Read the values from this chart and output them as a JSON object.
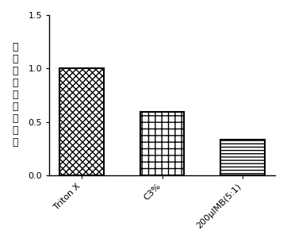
{
  "categories": [
    "Triton X",
    "C3%",
    "200μIMB(5:1)"
  ],
  "values": [
    1.0,
    0.595,
    0.33
  ],
  "hatch_patterns": [
    "xx",
    "**",
    "==="
  ],
  "bar_width": 0.55,
  "bar_facecolor": "white",
  "bar_edgecolor": "black",
  "ylim": [
    0,
    1.5
  ],
  "yticks": [
    0.0,
    0.5,
    1.0,
    1.5
  ],
  "ylabel": "细胞毒性相对百分毒",
  "ylabel_chars": [
    "细",
    "胞",
    "毒",
    "性",
    "相",
    "对",
    "百",
    "分",
    "毒"
  ],
  "xlabel": "",
  "title": "",
  "tick_label_fontsize": 8,
  "ylabel_fontsize": 9,
  "background_color": "#ffffff",
  "bar_linewidth": 1.5,
  "figsize": [
    3.62,
    3.05
  ],
  "dpi": 100
}
